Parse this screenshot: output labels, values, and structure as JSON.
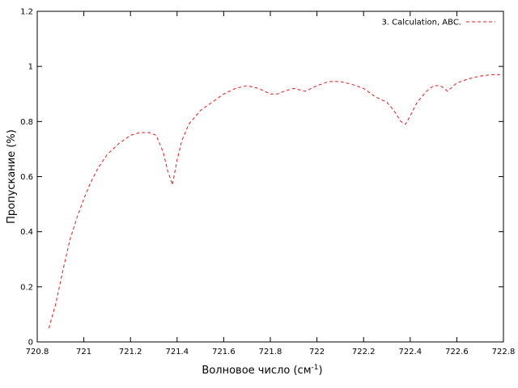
{
  "chart_data": {
    "type": "line",
    "title": "",
    "xlabel": "Волновое число (см",
    "xlabel_sup": "-1",
    "xlabel_suffix": ")",
    "ylabel": "Пропускание (%)",
    "xlim": [
      720.8,
      722.8
    ],
    "ylim": [
      0,
      1.2
    ],
    "x_ticks": [
      720.8,
      721,
      721.2,
      721.4,
      721.6,
      721.8,
      722,
      722.2,
      722.4,
      722.6,
      722.8
    ],
    "x_tick_labels": [
      "720.8",
      "721",
      "721.2",
      "721.4",
      "721.6",
      "721.8",
      "722",
      "722.2",
      "722.4",
      "722.6",
      "722.8"
    ],
    "y_ticks": [
      0,
      0.2,
      0.4,
      0.6,
      0.8,
      1,
      1.2
    ],
    "y_tick_labels": [
      "0",
      "0.2",
      "0.4",
      "0.6",
      "0.8",
      "1",
      "1.2"
    ],
    "grid": false,
    "legend_position": "top-right",
    "series": [
      {
        "name": "3. Calculation, ABC.",
        "color": "#e41a1c",
        "line_style": "dashed",
        "x": [
          720.85,
          720.88,
          720.91,
          720.94,
          720.97,
          721.0,
          721.03,
          721.06,
          721.1,
          721.15,
          721.2,
          721.24,
          721.28,
          721.31,
          721.34,
          721.36,
          721.38,
          721.4,
          721.42,
          721.45,
          721.5,
          721.55,
          721.6,
          721.65,
          721.7,
          721.75,
          721.8,
          721.83,
          721.86,
          721.9,
          721.95,
          722.0,
          722.05,
          722.1,
          722.15,
          722.2,
          722.25,
          722.3,
          722.33,
          722.36,
          722.38,
          722.4,
          722.43,
          722.47,
          722.5,
          722.53,
          722.56,
          722.6,
          722.65,
          722.7,
          722.75,
          722.8
        ],
        "y": [
          0.05,
          0.14,
          0.26,
          0.37,
          0.45,
          0.52,
          0.58,
          0.63,
          0.68,
          0.72,
          0.75,
          0.76,
          0.76,
          0.75,
          0.69,
          0.62,
          0.57,
          0.66,
          0.73,
          0.79,
          0.84,
          0.87,
          0.9,
          0.92,
          0.93,
          0.92,
          0.9,
          0.9,
          0.91,
          0.92,
          0.91,
          0.93,
          0.945,
          0.945,
          0.935,
          0.92,
          0.89,
          0.87,
          0.84,
          0.8,
          0.79,
          0.82,
          0.87,
          0.91,
          0.93,
          0.93,
          0.91,
          0.94,
          0.955,
          0.965,
          0.97,
          0.97
        ]
      }
    ]
  }
}
